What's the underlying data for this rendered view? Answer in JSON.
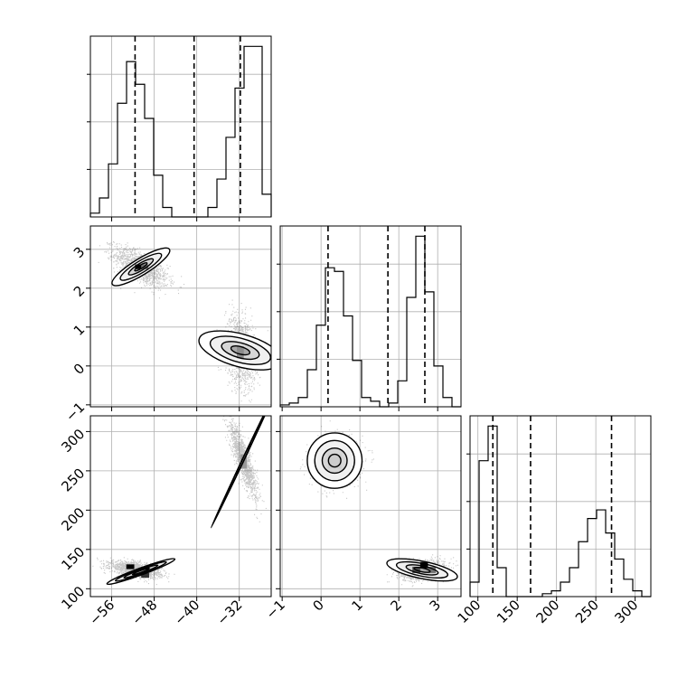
{
  "chart_data": {
    "type": "corner",
    "grid": true,
    "colors": {
      "line": "#000000",
      "grid": "#b0b0b0",
      "scatter": "#000000",
      "background": "#ffffff"
    },
    "parameters": [
      {
        "range": [
          -60,
          -26
        ]
      },
      {
        "range": [
          -1.05,
          3.6
        ]
      },
      {
        "range": [
          90,
          320
        ]
      }
    ],
    "ticks": [
      {
        "values": [
          -56,
          -48,
          -40,
          -32
        ],
        "labels": [
          "−56",
          "−48",
          "−40",
          "−32"
        ]
      },
      {
        "values": [
          -1,
          0,
          1,
          2,
          3
        ],
        "labels": [
          "−1",
          "0",
          "1",
          "2",
          "3"
        ]
      },
      {
        "values": [
          100,
          150,
          200,
          250,
          300
        ],
        "labels": [
          "100",
          "150",
          "200",
          "250",
          "300"
        ]
      }
    ],
    "quantiles": [
      [
        -51.6,
        -40.5,
        -31.8
      ],
      [
        0.18,
        1.72,
        2.67
      ],
      [
        119,
        167,
        270
      ]
    ],
    "histograms": [
      {
        "edges": [
          -60,
          -58.3,
          -56.6,
          -54.9,
          -53.2,
          -51.5,
          -49.8,
          -48.1,
          -46.4,
          -44.7,
          -43,
          -41.3,
          -39.6,
          -37.9,
          -36.2,
          -34.5,
          -32.8,
          -31.1,
          -29.4,
          -27.7,
          -26
        ],
        "counts": [
          0.02,
          0.1,
          0.28,
          0.6,
          0.82,
          0.7,
          0.52,
          0.22,
          0.05,
          0,
          0,
          0,
          0,
          0.05,
          0.2,
          0.42,
          0.68,
          0.9,
          0.9,
          0.12
        ]
      },
      {
        "edges": [
          -1.05,
          -0.8175,
          -0.585,
          -0.3525,
          -0.12,
          0.1125,
          0.345,
          0.5775,
          0.81,
          1.0425,
          1.275,
          1.5075,
          1.74,
          1.9725,
          2.205,
          2.4375,
          2.67,
          2.9025,
          3.135,
          3.3675,
          3.6
        ],
        "counts": [
          0.01,
          0.02,
          0.05,
          0.2,
          0.44,
          0.75,
          0.73,
          0.49,
          0.25,
          0.05,
          0.03,
          0,
          0.02,
          0.14,
          0.59,
          0.92,
          0.62,
          0.22,
          0.05,
          0
        ]
      },
      {
        "edges": [
          90,
          101.5,
          113,
          124.5,
          136,
          147.5,
          159,
          170.5,
          182,
          193.5,
          205,
          216.5,
          228,
          239.5,
          251,
          262.5,
          274,
          285.5,
          297,
          308.5,
          320
        ],
        "counts": [
          0.05,
          0.47,
          0.59,
          0.1,
          0,
          0,
          0,
          0,
          0.01,
          0.02,
          0.05,
          0.1,
          0.19,
          0.27,
          0.3,
          0.22,
          0.13,
          0.06,
          0.02,
          0
        ]
      }
    ],
    "pairs": [
      {
        "x": 0,
        "y": 1,
        "blobs": [
          {
            "center": [
              -50.5,
              2.55
            ],
            "sd": [
              2.5,
              0.25
            ],
            "corr": -0.65,
            "n": 1300
          },
          {
            "center": [
              -31.8,
              0.38
            ],
            "sd": [
              1.4,
              0.45
            ],
            "corr": -0.25,
            "n": 1300
          }
        ],
        "contours": [
          {
            "center": [
              -50.5,
              2.55
            ],
            "radii": [
              3.0,
              0.1
            ],
            "angle": -0.55,
            "scales": [
              0.45,
              0.9,
              1.5,
              2.1
            ]
          },
          {
            "center": [
              -31.8,
              0.4
            ],
            "radii": [
              1.4,
              0.5
            ],
            "angle": -1.3,
            "scales": [
              0.5,
              1.0,
              1.6,
              2.2
            ]
          }
        ],
        "density_cells": [
          {
            "center": [
              -51,
              2.55
            ],
            "size": [
              1.2,
              0.12
            ],
            "level": 1.0
          },
          {
            "center": [
              -49.7,
              2.55
            ],
            "size": [
              1.2,
              0.12
            ],
            "level": 0.55
          },
          {
            "center": [
              -31.8,
              0.35
            ],
            "size": [
              1.3,
              0.3
            ],
            "level": 0.45
          }
        ]
      },
      {
        "x": 0,
        "y": 2,
        "blobs": [
          {
            "center": [
              -51.6,
              125
            ],
            "sd": [
              2.4,
              5
            ],
            "corr": -0.5,
            "n": 1300
          },
          {
            "center": [
              -31.3,
              265
            ],
            "sd": [
              1.3,
              24
            ],
            "corr": -0.85,
            "n": 1300
          }
        ],
        "contours": [
          {
            "center": [
              -50.5,
              122
            ],
            "radii": [
              3.4,
              2.2
            ],
            "angle": -0.35,
            "scales": [
              0.5,
              1.0,
              1.5,
              2.0
            ]
          },
          {
            "center": [
              -31.2,
              265
            ],
            "radii": [
              6.5,
              0.45
            ],
            "angle": -1.13,
            "scales": [
              0.5,
              1.0,
              1.6,
              2.2
            ]
          }
        ],
        "density_cells": [
          {
            "center": [
              -52.5,
              128
            ],
            "size": [
              1.5,
              6
            ],
            "level": 1.0
          },
          {
            "center": [
              -49.7,
              117
            ],
            "size": [
              1.5,
              6
            ],
            "level": 0.8
          },
          {
            "center": [
              -31.2,
              262
            ],
            "size": [
              1.2,
              18
            ],
            "level": 0.4
          }
        ]
      },
      {
        "x": 1,
        "y": 2,
        "blobs": [
          {
            "center": [
              0.35,
              262
            ],
            "sd": [
              0.3,
              14
            ],
            "corr": 0.1,
            "n": 1300
          },
          {
            "center": [
              2.6,
              124
            ],
            "sd": [
              0.28,
              6
            ],
            "corr": 0.3,
            "n": 1300
          }
        ],
        "contours": [
          {
            "center": [
              0.35,
              263
            ],
            "radii": [
              0.32,
              16
            ],
            "angle": 0,
            "scales": [
              0.5,
              1.0,
              1.6,
              2.2
            ]
          },
          {
            "center": [
              2.6,
              124
            ],
            "radii": [
              0.42,
              5
            ],
            "angle": 0.2,
            "scales": [
              0.5,
              1.0,
              1.6,
              2.2
            ]
          }
        ],
        "density_cells": [
          {
            "center": [
              0.35,
              262
            ],
            "size": [
              0.35,
              18
            ],
            "level": 0.2
          },
          {
            "center": [
              2.45,
              124
            ],
            "size": [
              0.2,
              8
            ],
            "level": 0.7
          },
          {
            "center": [
              2.65,
              130
            ],
            "size": [
              0.2,
              8
            ],
            "level": 1.0
          },
          {
            "center": [
              2.85,
              124
            ],
            "size": [
              0.2,
              8
            ],
            "level": 0.55
          }
        ]
      }
    ]
  }
}
